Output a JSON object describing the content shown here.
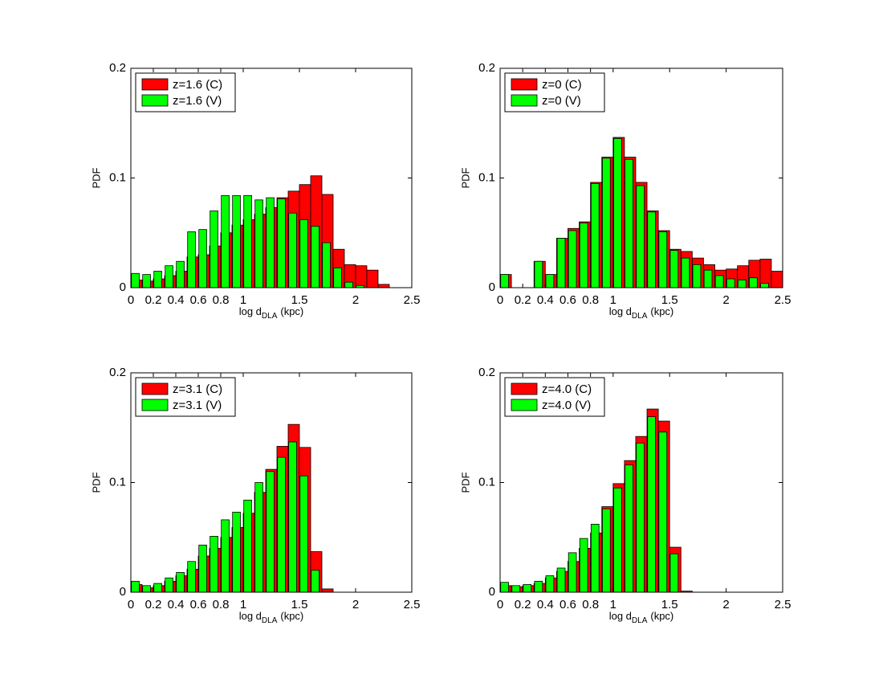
{
  "chart_data": [
    {
      "type": "bar",
      "ylabel": "PDF",
      "xlabel": "log d",
      "xlabel_sub": "DLA",
      "xlabel_unit": "(kpc)",
      "x": [
        0.05,
        0.15,
        0.25,
        0.35,
        0.45,
        0.55,
        0.65,
        0.75,
        0.85,
        0.95,
        1.05,
        1.15,
        1.25,
        1.35,
        1.45,
        1.55,
        1.65,
        1.75,
        1.85,
        1.95,
        2.05,
        2.15,
        2.25,
        2.35,
        2.45
      ],
      "series": [
        {
          "name": "z=1.6 (C)",
          "color": "#ff0000",
          "values": [
            0.007,
            0.006,
            0.008,
            0.011,
            0.015,
            0.028,
            0.03,
            0.038,
            0.05,
            0.057,
            0.062,
            0.067,
            0.073,
            0.082,
            0.088,
            0.094,
            0.102,
            0.085,
            0.035,
            0.021,
            0.02,
            0.016,
            0.003,
            0,
            0
          ]
        },
        {
          "name": "z=1.6 (V)",
          "color": "#00ff00",
          "values": [
            0.013,
            0.012,
            0.015,
            0.02,
            0.024,
            0.051,
            0.053,
            0.07,
            0.084,
            0.084,
            0.084,
            0.08,
            0.082,
            0.081,
            0.068,
            0.062,
            0.056,
            0.041,
            0.018,
            0.005,
            0.002,
            0,
            0,
            0,
            0
          ]
        }
      ],
      "xlim": [
        0,
        2.5
      ],
      "xticks": [
        0,
        0.2,
        0.4,
        0.6,
        0.8,
        1,
        1.5,
        2,
        2.5
      ],
      "ylim": [
        0,
        0.2
      ],
      "yticks": [
        0,
        0.1,
        0.2
      ],
      "legend": "upper left"
    },
    {
      "type": "bar",
      "ylabel": "PDF",
      "xlabel": "log d",
      "xlabel_sub": "DLA",
      "xlabel_unit": "(kpc)",
      "x": [
        0.05,
        0.15,
        0.25,
        0.35,
        0.45,
        0.55,
        0.65,
        0.75,
        0.85,
        0.95,
        1.05,
        1.15,
        1.25,
        1.35,
        1.45,
        1.55,
        1.65,
        1.75,
        1.85,
        1.95,
        2.05,
        2.15,
        2.25,
        2.35,
        2.45
      ],
      "series": [
        {
          "name": "z=0 (C)",
          "color": "#ff0000",
          "values": [
            0.012,
            0,
            0,
            0.024,
            0.012,
            0.045,
            0.054,
            0.06,
            0.096,
            0.119,
            0.137,
            0.119,
            0.096,
            0.07,
            0.052,
            0.035,
            0.033,
            0.027,
            0.021,
            0.016,
            0.017,
            0.02,
            0.025,
            0.026,
            0.015
          ]
        },
        {
          "name": "z=0 (V)",
          "color": "#00ff00",
          "values": [
            0.012,
            0,
            0,
            0.024,
            0.012,
            0.045,
            0.052,
            0.059,
            0.095,
            0.118,
            0.136,
            0.117,
            0.093,
            0.069,
            0.051,
            0.034,
            0.027,
            0.021,
            0.016,
            0.011,
            0.008,
            0.007,
            0.009,
            0.004,
            0
          ]
        }
      ],
      "xlim": [
        0,
        2.5
      ],
      "xticks": [
        0,
        0.2,
        0.4,
        0.6,
        0.8,
        1,
        1.5,
        2,
        2.5
      ],
      "ylim": [
        0,
        0.2
      ],
      "yticks": [
        0,
        0.1,
        0.2
      ],
      "legend": "upper left"
    },
    {
      "type": "bar",
      "ylabel": "PDF",
      "xlabel": "log d",
      "xlabel_sub": "DLA",
      "xlabel_unit": "(kpc)",
      "x": [
        0.05,
        0.15,
        0.25,
        0.35,
        0.45,
        0.55,
        0.65,
        0.75,
        0.85,
        0.95,
        1.05,
        1.15,
        1.25,
        1.35,
        1.45,
        1.55,
        1.65,
        1.75,
        1.85,
        1.95,
        2.05,
        2.15,
        2.25,
        2.35,
        2.45
      ],
      "series": [
        {
          "name": "z=3.1 (C)",
          "color": "#ff0000",
          "values": [
            0.007,
            0.004,
            0.006,
            0.01,
            0.015,
            0.021,
            0.033,
            0.04,
            0.05,
            0.059,
            0.072,
            0.091,
            0.112,
            0.133,
            0.153,
            0.132,
            0.037,
            0.003,
            0,
            0,
            0,
            0,
            0,
            0,
            0
          ]
        },
        {
          "name": "z=3.1 (V)",
          "color": "#00ff00",
          "values": [
            0.01,
            0.006,
            0.008,
            0.013,
            0.018,
            0.028,
            0.043,
            0.051,
            0.066,
            0.073,
            0.084,
            0.1,
            0.11,
            0.123,
            0.137,
            0.106,
            0.02,
            0,
            0,
            0,
            0,
            0,
            0,
            0,
            0
          ]
        }
      ],
      "xlim": [
        0,
        2.5
      ],
      "xticks": [
        0,
        0.2,
        0.4,
        0.6,
        0.8,
        1,
        1.5,
        2,
        2.5
      ],
      "ylim": [
        0,
        0.2
      ],
      "yticks": [
        0,
        0.1,
        0.2
      ],
      "legend": "upper left"
    },
    {
      "type": "bar",
      "ylabel": "PDF",
      "xlabel": "log d",
      "xlabel_sub": "DLA",
      "xlabel_unit": "(kpc)",
      "x": [
        0.05,
        0.15,
        0.25,
        0.35,
        0.45,
        0.55,
        0.65,
        0.75,
        0.85,
        0.95,
        1.05,
        1.15,
        1.25,
        1.35,
        1.45,
        1.55,
        1.65,
        1.75,
        1.85,
        1.95,
        2.05,
        2.15,
        2.25,
        2.35,
        2.45
      ],
      "series": [
        {
          "name": "z=4.0 (C)",
          "color": "#ff0000",
          "values": [
            0.006,
            0.005,
            0.006,
            0.008,
            0.013,
            0.019,
            0.028,
            0.04,
            0.054,
            0.078,
            0.099,
            0.12,
            0.142,
            0.167,
            0.156,
            0.041,
            0.001,
            0,
            0,
            0,
            0,
            0,
            0,
            0,
            0
          ]
        },
        {
          "name": "z=4.0 (V)",
          "color": "#00ff00",
          "values": [
            0.009,
            0.006,
            0.007,
            0.01,
            0.015,
            0.022,
            0.036,
            0.049,
            0.062,
            0.076,
            0.095,
            0.116,
            0.136,
            0.16,
            0.146,
            0.035,
            0,
            0,
            0,
            0,
            0,
            0,
            0,
            0,
            0
          ]
        }
      ],
      "xlim": [
        0,
        2.5
      ],
      "xticks": [
        0,
        0.2,
        0.4,
        0.6,
        0.8,
        1,
        1.5,
        2,
        2.5
      ],
      "ylim": [
        0,
        0.2
      ],
      "yticks": [
        0,
        0.1,
        0.2
      ],
      "legend": "upper left"
    }
  ]
}
